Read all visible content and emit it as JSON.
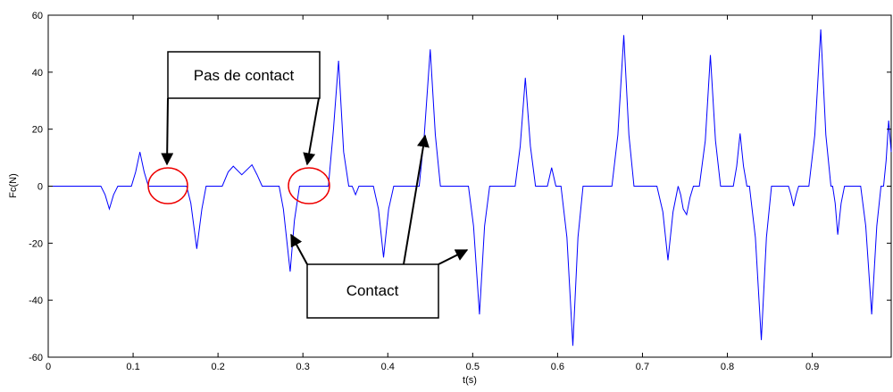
{
  "chart_data": {
    "type": "line",
    "xlabel": "t(s)",
    "ylabel": "Fc(N)",
    "annotations": [
      "Pas de contact",
      "Contact"
    ],
    "color": "#0000ff",
    "xlim": [
      0,
      0.993
    ],
    "ylim": [
      -60,
      60
    ],
    "xticks": [
      0,
      0.1,
      0.2,
      0.3,
      0.4,
      0.5,
      0.6,
      0.7,
      0.8,
      0.9
    ],
    "yticks": [
      -60,
      -40,
      -20,
      0,
      20,
      40,
      60
    ],
    "grid": false,
    "x": [
      0,
      0.062,
      0.067,
      0.072,
      0.077,
      0.082,
      0.098,
      0.103,
      0.108,
      0.113,
      0.118,
      0.163,
      0.168,
      0.175,
      0.181,
      0.186,
      0.205,
      0.212,
      0.218,
      0.228,
      0.24,
      0.246,
      0.252,
      0.272,
      0.277,
      0.285,
      0.29,
      0.296,
      0.33,
      0.336,
      0.342,
      0.348,
      0.354,
      0.358,
      0.362,
      0.366,
      0.383,
      0.389,
      0.395,
      0.401,
      0.407,
      0.437,
      0.443,
      0.45,
      0.456,
      0.462,
      0.495,
      0.501,
      0.508,
      0.514,
      0.52,
      0.55,
      0.556,
      0.562,
      0.568,
      0.574,
      0.588,
      0.593,
      0.598,
      0.604,
      0.611,
      0.618,
      0.624,
      0.63,
      0.664,
      0.671,
      0.678,
      0.684,
      0.69,
      0.717,
      0.724,
      0.73,
      0.736,
      0.742,
      0.745,
      0.748,
      0.752,
      0.756,
      0.76,
      0.767,
      0.774,
      0.78,
      0.786,
      0.792,
      0.807,
      0.811,
      0.815,
      0.819,
      0.823,
      0.826,
      0.833,
      0.84,
      0.846,
      0.852,
      0.872,
      0.875,
      0.878,
      0.881,
      0.884,
      0.896,
      0.903,
      0.91,
      0.916,
      0.922,
      0.924,
      0.927,
      0.93,
      0.934,
      0.938,
      0.957,
      0.963,
      0.97,
      0.976,
      0.981,
      0.984,
      0.987,
      0.99,
      0.993
    ],
    "values": [
      0,
      0,
      -3,
      -8,
      -3,
      0,
      0,
      5,
      12,
      5,
      0,
      0,
      -6,
      -22,
      -8,
      0,
      0,
      5,
      7,
      4,
      7.5,
      4,
      0,
      0,
      -8,
      -30,
      -12,
      0,
      0,
      20,
      44,
      12,
      0,
      0,
      -3,
      0,
      0,
      -8,
      -25,
      -8,
      0,
      0,
      18,
      48,
      18,
      0,
      0,
      -14,
      -45,
      -14,
      0,
      0,
      14,
      38,
      14,
      0,
      0,
      6.5,
      0,
      0,
      -18,
      -56,
      -18,
      0,
      0,
      18,
      53,
      18,
      0,
      0,
      -9,
      -26,
      -9,
      0,
      -3,
      -8,
      -10,
      -4,
      0,
      0,
      16,
      46,
      16,
      0,
      0,
      7,
      18.5,
      7,
      0,
      0,
      -18,
      -54,
      -18,
      0,
      0,
      -3,
      -7,
      -3,
      0,
      0,
      18,
      55,
      18,
      0,
      0,
      -6,
      -17,
      -6,
      0,
      0,
      -14,
      -45,
      -14,
      0,
      0,
      9,
      23,
      12
    ]
  }
}
